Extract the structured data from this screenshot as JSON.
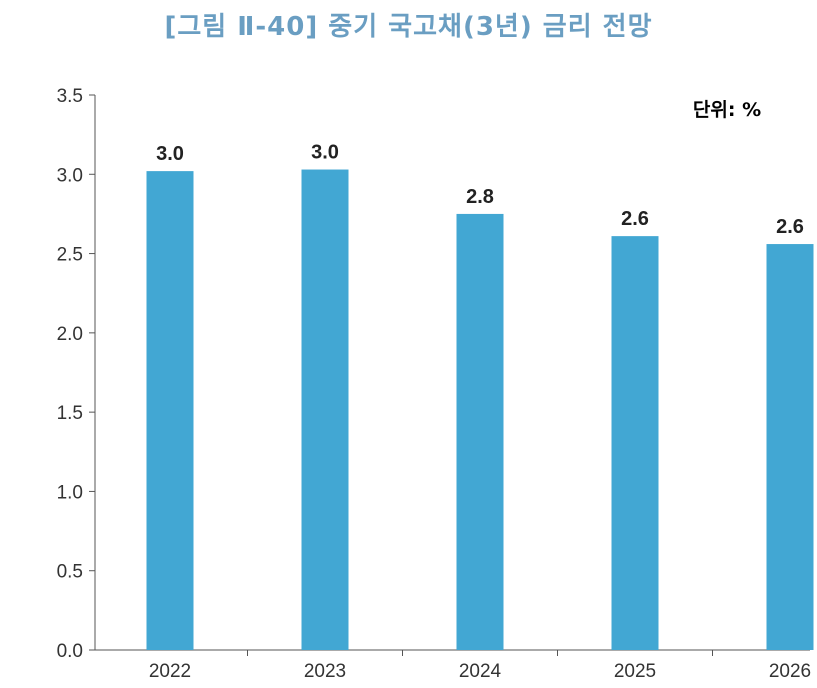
{
  "title": "[그림 Ⅱ-40] 중기 국고채(3년) 금리 전망",
  "unit": "단위: %",
  "chart_data": {
    "type": "bar",
    "title": "[그림 Ⅱ-40] 중기 국고채(3년) 금리 전망",
    "xlabel": "",
    "ylabel": "",
    "categories": [
      "2022",
      "2023",
      "2024",
      "2025",
      "2026"
    ],
    "values": [
      3.02,
      3.03,
      2.75,
      2.61,
      2.56
    ],
    "data_labels": [
      "3.0",
      "3.0",
      "2.8",
      "2.6",
      "2.6"
    ],
    "ylim": [
      0,
      3.5
    ],
    "yticks": [
      "0.0",
      "0.5",
      "1.0",
      "1.5",
      "2.0",
      "2.5",
      "3.0",
      "3.5"
    ],
    "bar_color": "#42a7d3",
    "grid": false,
    "legend": "none"
  }
}
